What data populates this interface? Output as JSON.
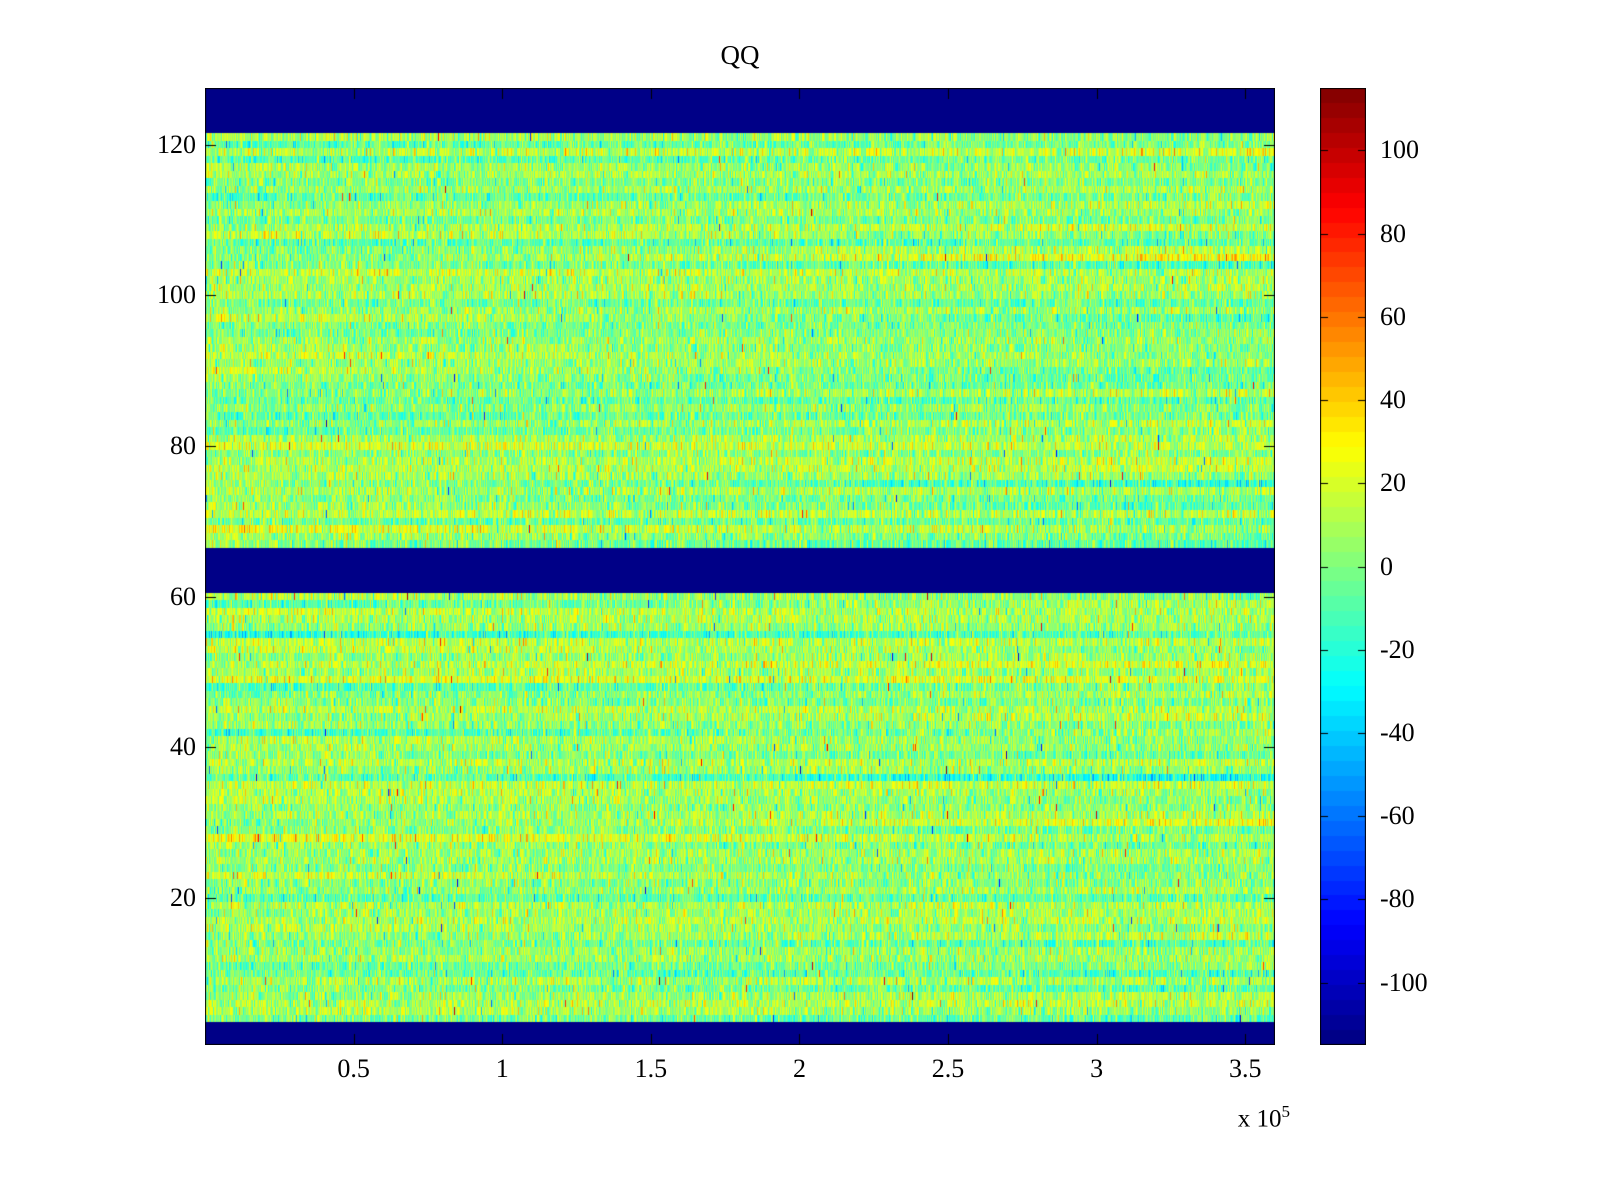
{
  "figure": {
    "background_color": "#ffffff",
    "axis_color": "#000000"
  },
  "chart_data": {
    "type": "heatmap",
    "title": "QQ",
    "xlabel": "",
    "ylabel": "",
    "x_range": [
      0,
      360000
    ],
    "x_ticks": [
      {
        "value": 50000,
        "label": "0.5"
      },
      {
        "value": 100000,
        "label": "1"
      },
      {
        "value": 150000,
        "label": "1.5"
      },
      {
        "value": 200000,
        "label": "2"
      },
      {
        "value": 250000,
        "label": "2.5"
      },
      {
        "value": 300000,
        "label": "3"
      },
      {
        "value": 350000,
        "label": "3.5"
      }
    ],
    "x_axis_multiplier": {
      "prefix": "x 10",
      "exponent": "5"
    },
    "y_range": [
      0.5,
      127.5
    ],
    "y_ticks": [
      {
        "value": 20,
        "label": "20"
      },
      {
        "value": 40,
        "label": "40"
      },
      {
        "value": 60,
        "label": "60"
      },
      {
        "value": 80,
        "label": "80"
      },
      {
        "value": 100,
        "label": "100"
      },
      {
        "value": 120,
        "label": "120"
      }
    ],
    "rows": 127,
    "cols": 1070,
    "colormap": "jet",
    "colormap_levels": 64,
    "color_range": [
      -115,
      115
    ],
    "colorbar_ticks": [
      {
        "value": 100,
        "label": "100"
      },
      {
        "value": 80,
        "label": "80"
      },
      {
        "value": 60,
        "label": "60"
      },
      {
        "value": 40,
        "label": "40"
      },
      {
        "value": 20,
        "label": "20"
      },
      {
        "value": 0,
        "label": "0"
      },
      {
        "value": -20,
        "label": "-20"
      },
      {
        "value": -40,
        "label": "-40"
      },
      {
        "value": -60,
        "label": "-60"
      },
      {
        "value": -80,
        "label": "-80"
      },
      {
        "value": -100,
        "label": "-100"
      }
    ],
    "blank_bands_rows": [
      [
        1,
        3
      ],
      [
        61,
        66
      ],
      [
        122,
        127
      ]
    ],
    "blank_value": -115,
    "noise_model": {
      "seed": 1234,
      "mean": 4,
      "std": 14,
      "row_bias_std": 6,
      "row_gradient_std": 5,
      "speck_probability": 0.004,
      "speck_min": 30,
      "speck_max": 85
    },
    "grid": false,
    "legend": false
  }
}
